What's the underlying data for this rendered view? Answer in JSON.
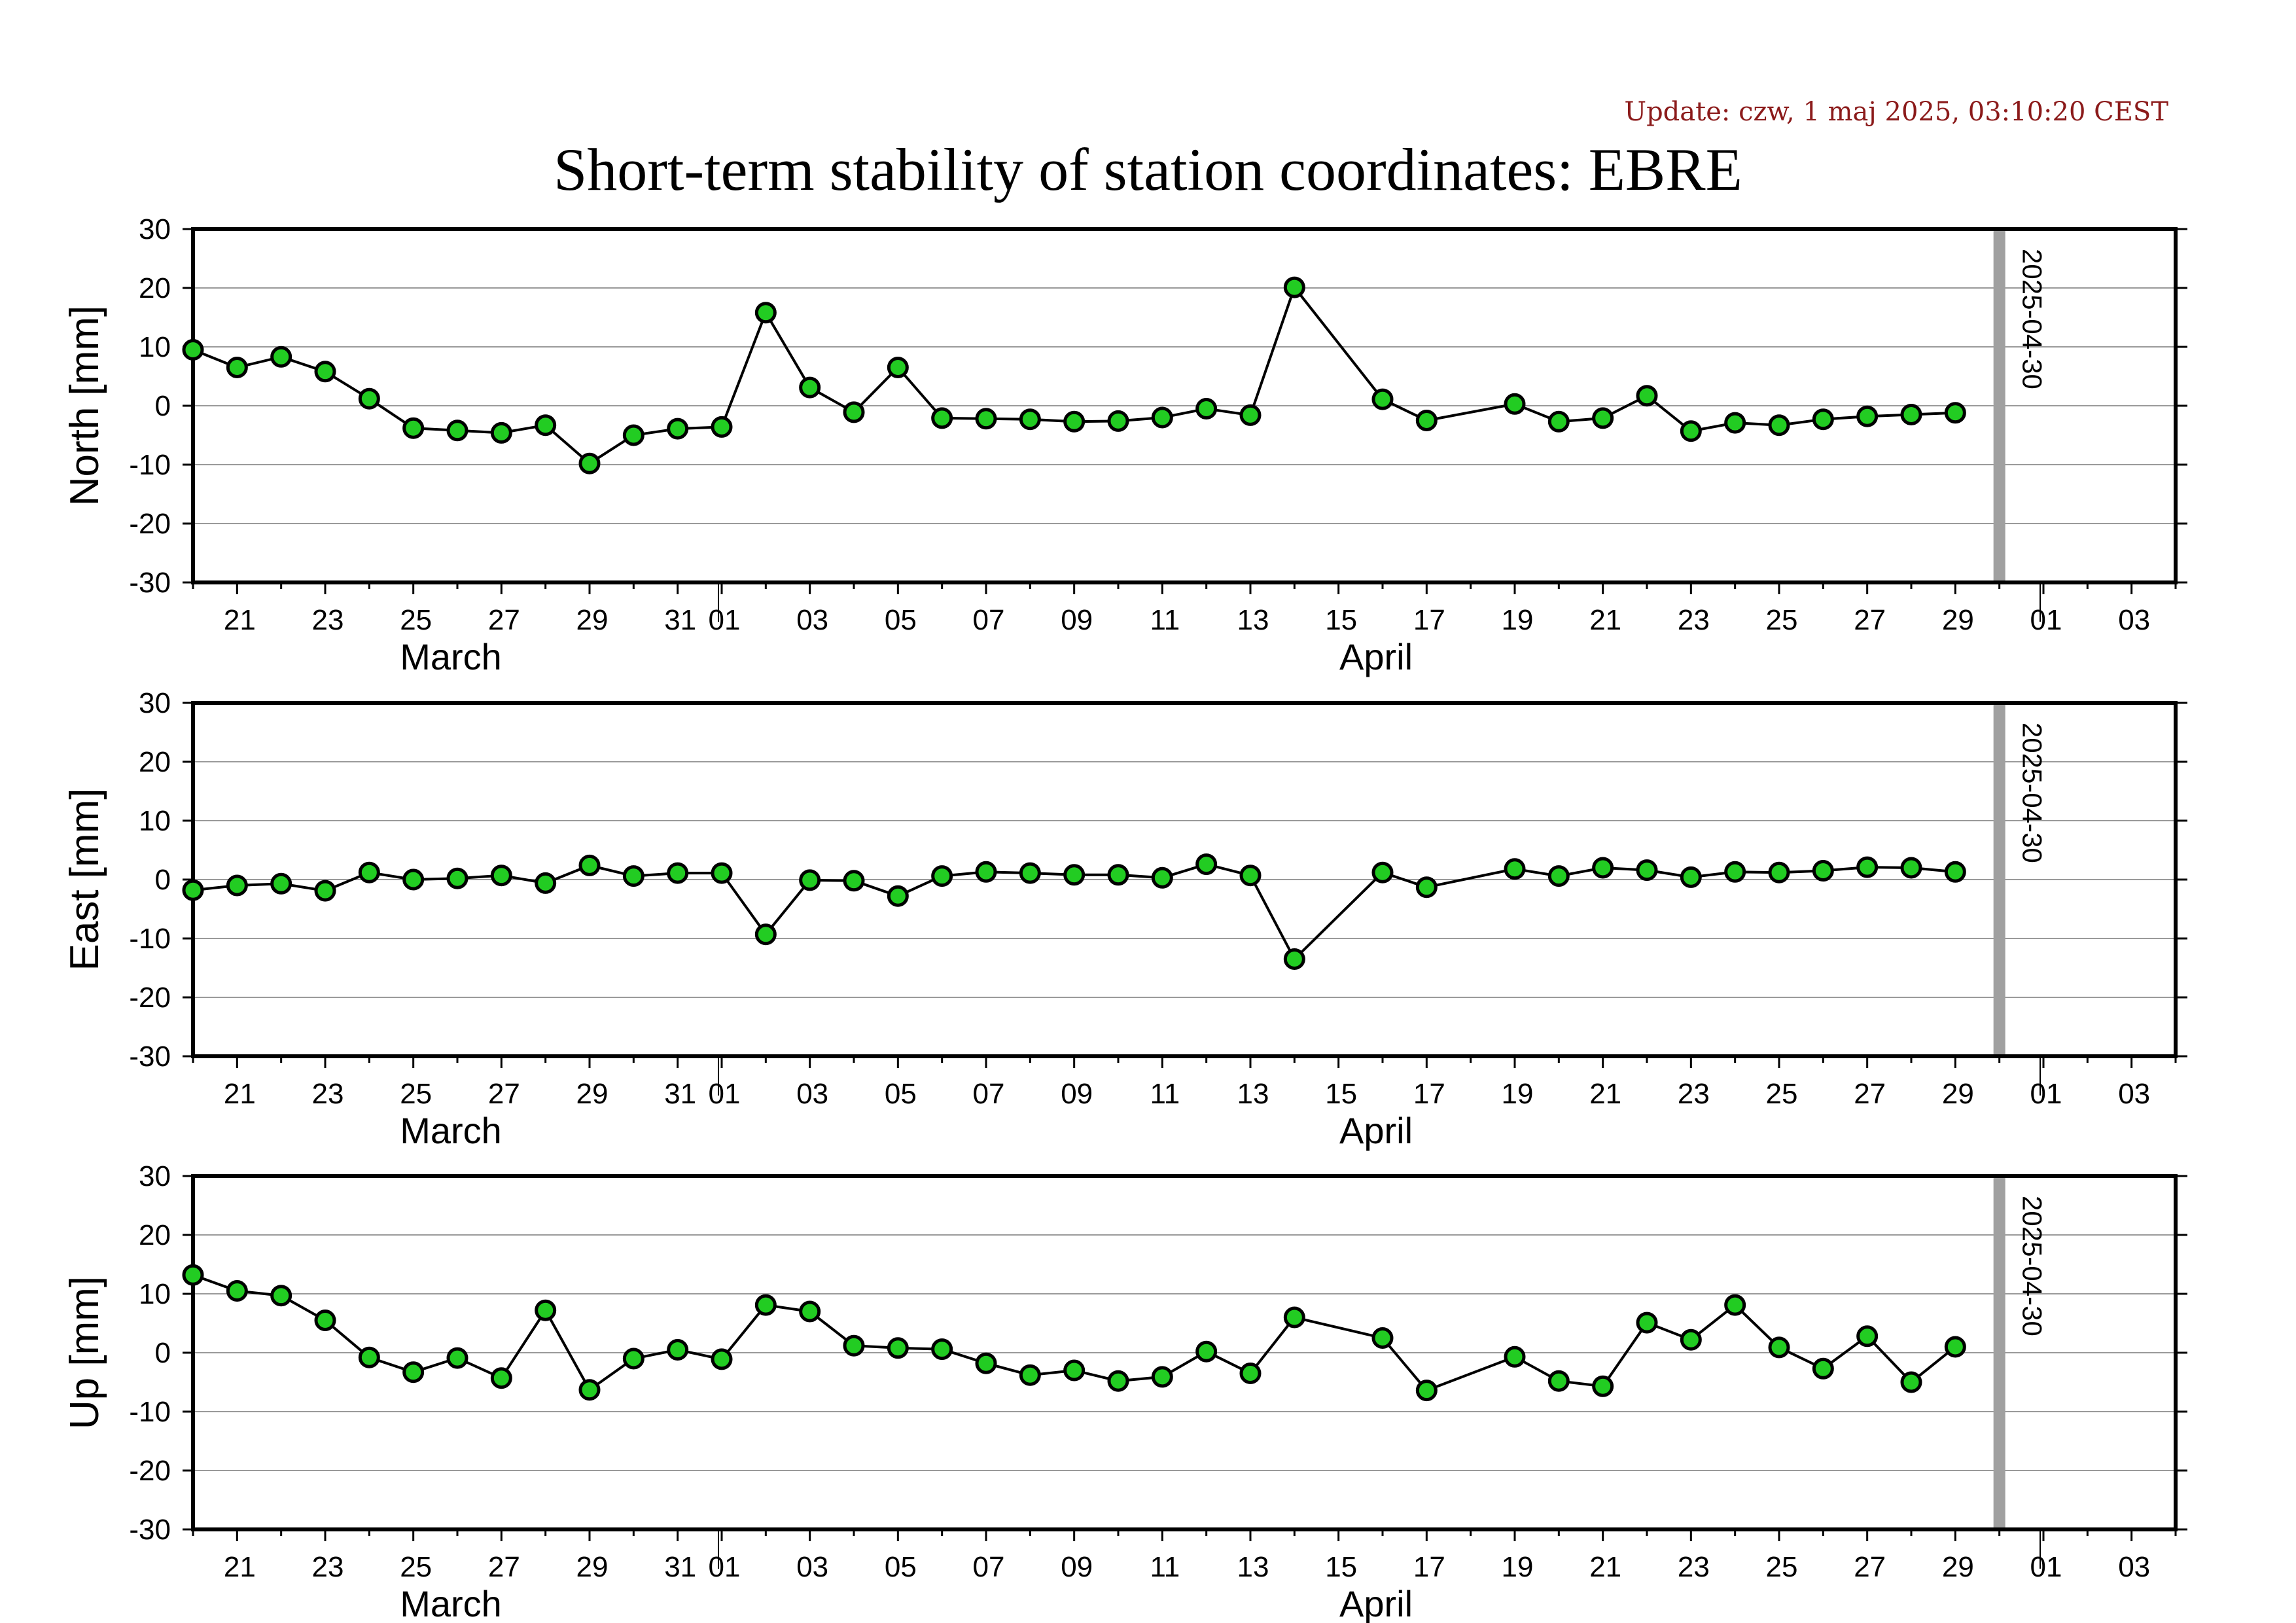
{
  "header": {
    "update": "Update: czw, 1 maj 2025, 03:10:20 CEST",
    "title": "Short-term stability of station coordinates: EBRE"
  },
  "colors": {
    "marker_fill": "#22cc22",
    "marker_stroke": "#000000",
    "line": "#000000",
    "gridline": "#9a9a9a",
    "date_marker": "#a0a0a0"
  },
  "chart_data": [
    {
      "type": "line",
      "ylabel": "North [mm]",
      "ylim": [
        -30,
        30
      ],
      "yticks": [
        30,
        20,
        10,
        0,
        -10,
        -20,
        -30
      ],
      "xlim": [
        "2025-03-20",
        "2025-05-04"
      ],
      "grid": "horizontal",
      "x_tick_labels": [
        "21",
        "23",
        "25",
        "27",
        "29",
        "31",
        "01",
        "03",
        "05",
        "07",
        "09",
        "11",
        "13",
        "15",
        "17",
        "19",
        "21",
        "23",
        "25",
        "27",
        "29",
        "01",
        "03"
      ],
      "x_group_labels": [
        "March",
        "April"
      ],
      "date_marker": {
        "date": "2025-04-30",
        "label": "2025-04-30"
      },
      "x": [
        "2025-03-20",
        "2025-03-21",
        "2025-03-22",
        "2025-03-23",
        "2025-03-24",
        "2025-03-25",
        "2025-03-26",
        "2025-03-27",
        "2025-03-28",
        "2025-03-29",
        "2025-03-30",
        "2025-03-31",
        "2025-04-01",
        "2025-04-02",
        "2025-04-03",
        "2025-04-04",
        "2025-04-05",
        "2025-04-06",
        "2025-04-07",
        "2025-04-08",
        "2025-04-09",
        "2025-04-10",
        "2025-04-11",
        "2025-04-12",
        "2025-04-13",
        "2025-04-14",
        "2025-04-16",
        "2025-04-17",
        "2025-04-19",
        "2025-04-20",
        "2025-04-21",
        "2025-04-22",
        "2025-04-23",
        "2025-04-24",
        "2025-04-25",
        "2025-04-26",
        "2025-04-27",
        "2025-04-28",
        "2025-04-29"
      ],
      "values": [
        9.5,
        6.5,
        8.3,
        5.8,
        1.2,
        -3.8,
        -4.2,
        -4.6,
        -3.3,
        -9.8,
        -5.0,
        -3.9,
        -3.6,
        15.8,
        3.1,
        -1.1,
        6.5,
        -2.1,
        -2.2,
        -2.3,
        -2.7,
        -2.6,
        -2.0,
        -0.5,
        -1.6,
        20.1,
        1.1,
        -2.5,
        0.3,
        -2.7,
        -2.1,
        1.7,
        -4.3,
        -2.9,
        -3.3,
        -2.3,
        -1.8,
        -1.5,
        -1.2
      ]
    },
    {
      "type": "line",
      "ylabel": "East [mm]",
      "ylim": [
        -30,
        30
      ],
      "yticks": [
        30,
        20,
        10,
        0,
        -10,
        -20,
        -30
      ],
      "xlim": [
        "2025-03-20",
        "2025-05-04"
      ],
      "grid": "horizontal",
      "x_tick_labels": [
        "21",
        "23",
        "25",
        "27",
        "29",
        "31",
        "01",
        "03",
        "05",
        "07",
        "09",
        "11",
        "13",
        "15",
        "17",
        "19",
        "21",
        "23",
        "25",
        "27",
        "29",
        "01",
        "03"
      ],
      "x_group_labels": [
        "March",
        "April"
      ],
      "date_marker": {
        "date": "2025-04-30",
        "label": "2025-04-30"
      },
      "x": [
        "2025-03-20",
        "2025-03-21",
        "2025-03-22",
        "2025-03-23",
        "2025-03-24",
        "2025-03-25",
        "2025-03-26",
        "2025-03-27",
        "2025-03-28",
        "2025-03-29",
        "2025-03-30",
        "2025-03-31",
        "2025-04-01",
        "2025-04-02",
        "2025-04-03",
        "2025-04-04",
        "2025-04-05",
        "2025-04-06",
        "2025-04-07",
        "2025-04-08",
        "2025-04-09",
        "2025-04-10",
        "2025-04-11",
        "2025-04-12",
        "2025-04-13",
        "2025-04-14",
        "2025-04-16",
        "2025-04-17",
        "2025-04-19",
        "2025-04-20",
        "2025-04-21",
        "2025-04-22",
        "2025-04-23",
        "2025-04-24",
        "2025-04-25",
        "2025-04-26",
        "2025-04-27",
        "2025-04-28",
        "2025-04-29"
      ],
      "values": [
        -1.8,
        -1.0,
        -0.7,
        -1.9,
        1.2,
        0.0,
        0.2,
        0.7,
        -0.6,
        2.4,
        0.6,
        1.1,
        1.1,
        -9.3,
        -0.1,
        -0.2,
        -2.8,
        0.6,
        1.3,
        1.1,
        0.8,
        0.8,
        0.3,
        2.6,
        0.7,
        -13.5,
        1.2,
        -1.3,
        1.8,
        0.6,
        2.0,
        1.6,
        0.4,
        1.3,
        1.2,
        1.5,
        2.1,
        2.0,
        1.3
      ]
    },
    {
      "type": "line",
      "ylabel": "Up [mm]",
      "ylim": [
        -30,
        30
      ],
      "yticks": [
        30,
        20,
        10,
        0,
        -10,
        -20,
        -30
      ],
      "xlim": [
        "2025-03-20",
        "2025-05-04"
      ],
      "grid": "horizontal",
      "x_tick_labels": [
        "21",
        "23",
        "25",
        "27",
        "29",
        "31",
        "01",
        "03",
        "05",
        "07",
        "09",
        "11",
        "13",
        "15",
        "17",
        "19",
        "21",
        "23",
        "25",
        "27",
        "29",
        "01",
        "03"
      ],
      "x_group_labels": [
        "March",
        "April"
      ],
      "date_marker": {
        "date": "2025-04-30",
        "label": "2025-04-30"
      },
      "x": [
        "2025-03-20",
        "2025-03-21",
        "2025-03-22",
        "2025-03-23",
        "2025-03-24",
        "2025-03-25",
        "2025-03-26",
        "2025-03-27",
        "2025-03-28",
        "2025-03-29",
        "2025-03-30",
        "2025-03-31",
        "2025-04-01",
        "2025-04-02",
        "2025-04-03",
        "2025-04-04",
        "2025-04-05",
        "2025-04-06",
        "2025-04-07",
        "2025-04-08",
        "2025-04-09",
        "2025-04-10",
        "2025-04-11",
        "2025-04-12",
        "2025-04-13",
        "2025-04-14",
        "2025-04-16",
        "2025-04-17",
        "2025-04-19",
        "2025-04-20",
        "2025-04-21",
        "2025-04-22",
        "2025-04-23",
        "2025-04-24",
        "2025-04-25",
        "2025-04-26",
        "2025-04-27",
        "2025-04-28",
        "2025-04-29"
      ],
      "values": [
        13.2,
        10.5,
        9.7,
        5.5,
        -0.8,
        -3.3,
        -0.9,
        -4.3,
        7.2,
        -6.3,
        -1.0,
        0.5,
        -1.1,
        8.1,
        7.0,
        1.2,
        0.8,
        0.6,
        -1.8,
        -3.8,
        -3.0,
        -4.8,
        -4.1,
        0.2,
        -3.5,
        6.0,
        2.5,
        -6.4,
        -0.7,
        -4.8,
        -5.7,
        5.1,
        2.2,
        8.1,
        0.9,
        -2.7,
        2.8,
        -5.0,
        1.0
      ]
    }
  ]
}
